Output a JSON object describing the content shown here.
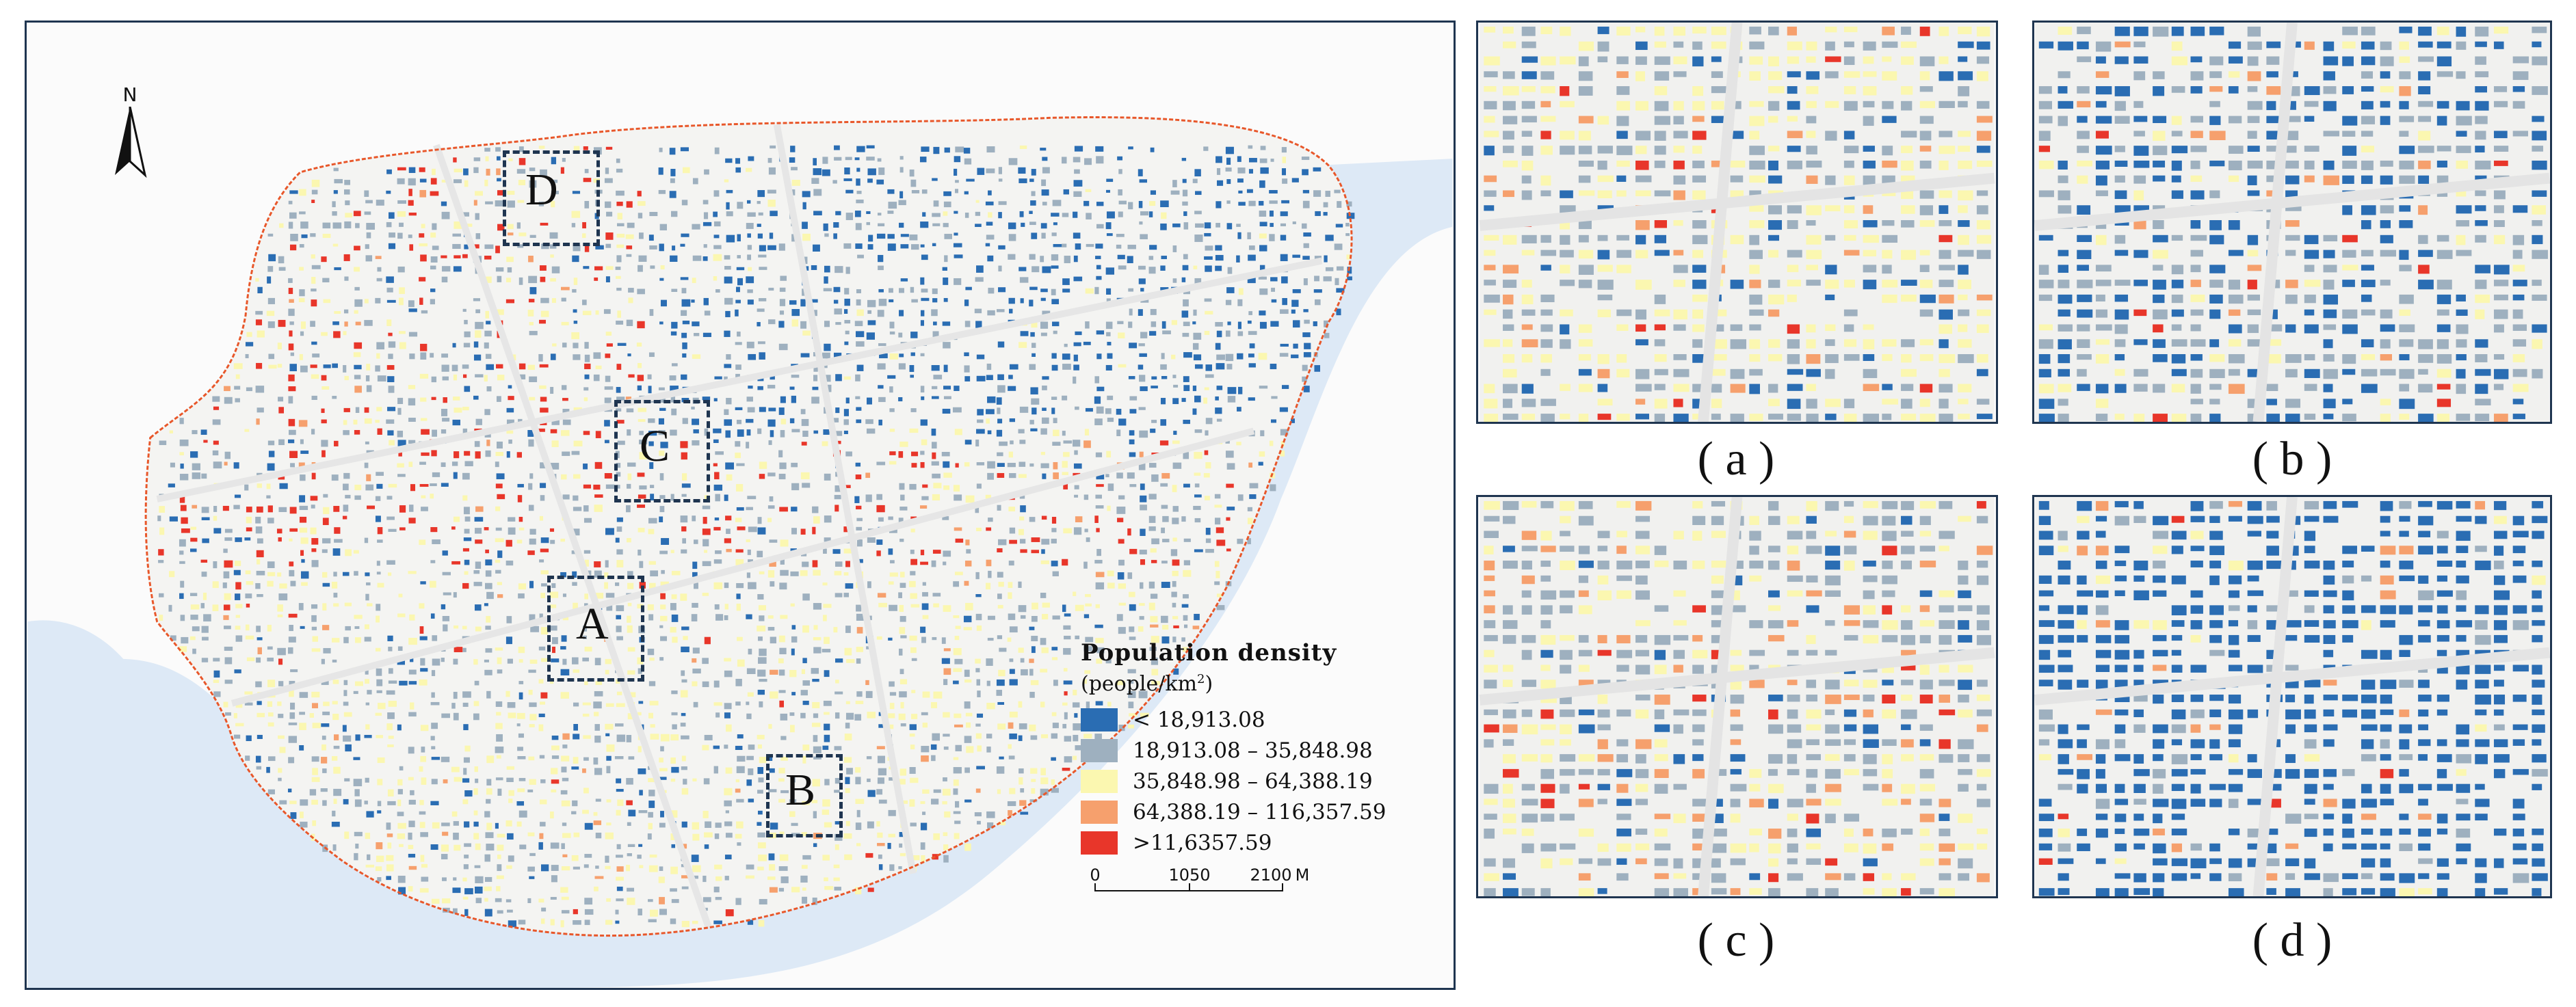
{
  "main_map": {
    "north_label": "N",
    "study_areas": [
      {
        "id": "A"
      },
      {
        "id": "B"
      },
      {
        "id": "C"
      },
      {
        "id": "D"
      }
    ]
  },
  "legend": {
    "title": "Population density",
    "units": "(people/km",
    "units_sup": "2",
    "units_close": ")",
    "classes": [
      {
        "label": "< 18,913.08",
        "color": "#2a6db3"
      },
      {
        "label": "18,913.08 – 35,848.98",
        "color": "#9eb0bf"
      },
      {
        "label": "35,848.98 – 64,388.19",
        "color": "#fbf7b0"
      },
      {
        "label": "64,388.19 – 116,357.59",
        "color": "#f6a06d"
      },
      {
        "label": ">11,6357.59",
        "color": "#e8362a"
      }
    ]
  },
  "scale_bar": {
    "ticks": [
      "0",
      "1050",
      "2100"
    ],
    "unit": "M"
  },
  "insets": [
    {
      "caption": "( a )"
    },
    {
      "caption": "( b )"
    },
    {
      "caption": "( c )"
    },
    {
      "caption": "( d )"
    }
  ],
  "colors": {
    "water": "#dde9f6",
    "frame": "#1f3550",
    "boundary": "#e8572a",
    "road": "#e6e6e6"
  }
}
